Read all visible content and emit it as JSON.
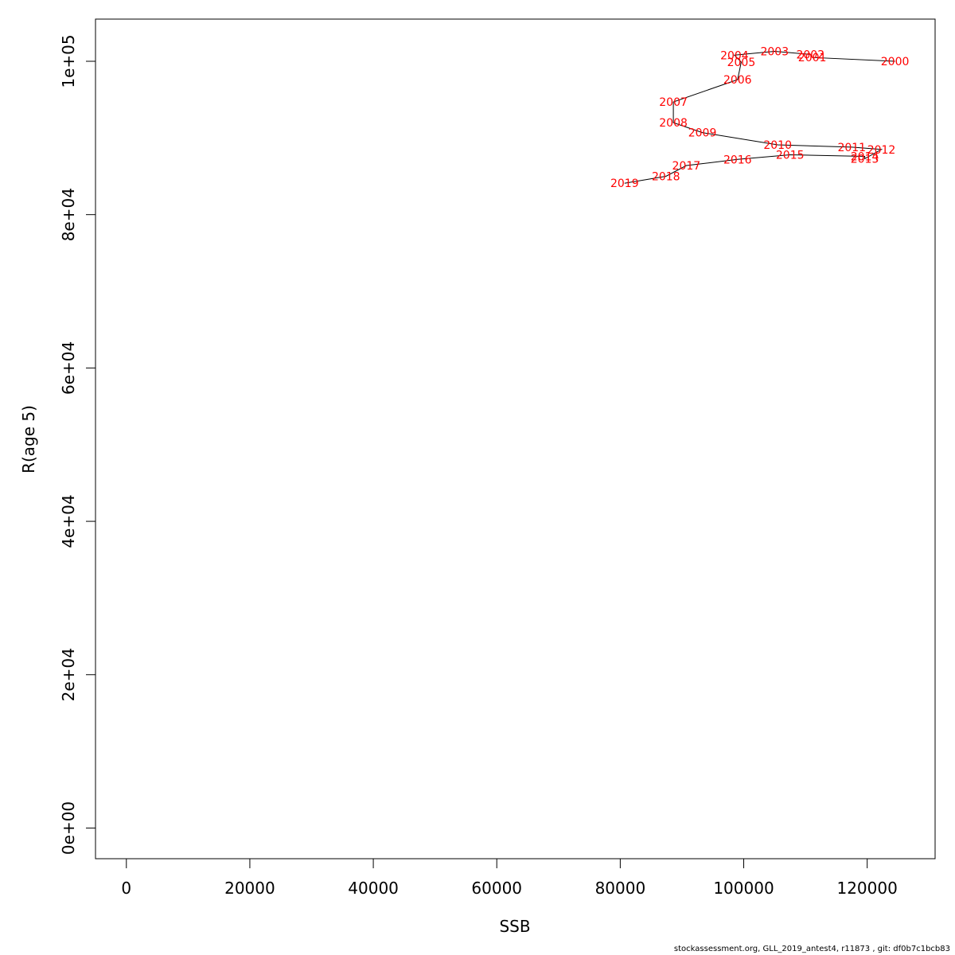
{
  "chart_data": {
    "type": "line",
    "xlabel": "SSB",
    "ylabel": "R(age 5)",
    "xlim": [
      -5000,
      131000
    ],
    "ylim": [
      -4000,
      105500
    ],
    "x_ticks": [
      0,
      20000,
      40000,
      60000,
      80000,
      100000,
      120000
    ],
    "x_tick_labels": [
      "0",
      "20000",
      "40000",
      "60000",
      "80000",
      "100000",
      "120000"
    ],
    "y_ticks": [
      0,
      20000,
      40000,
      60000,
      80000,
      100000
    ],
    "y_tick_labels": [
      "0e+00",
      "2e+04",
      "4e+04",
      "6e+04",
      "8e+04",
      "1e+05"
    ],
    "grid": false,
    "line_color": "#000000",
    "label_color": "#ff0000",
    "points": [
      {
        "label": "2000",
        "x": 124500,
        "y": 100000
      },
      {
        "label": "2001",
        "x": 111100,
        "y": 100500
      },
      {
        "label": "2002",
        "x": 110800,
        "y": 100900
      },
      {
        "label": "2003",
        "x": 105000,
        "y": 101300
      },
      {
        "label": "2004",
        "x": 98500,
        "y": 100800
      },
      {
        "label": "2005",
        "x": 99600,
        "y": 99900
      },
      {
        "label": "2006",
        "x": 99000,
        "y": 97600
      },
      {
        "label": "2007",
        "x": 88600,
        "y": 94700
      },
      {
        "label": "2008",
        "x": 88600,
        "y": 92000
      },
      {
        "label": "2009",
        "x": 93300,
        "y": 90700
      },
      {
        "label": "2010",
        "x": 105500,
        "y": 89100
      },
      {
        "label": "2011",
        "x": 117500,
        "y": 88800
      },
      {
        "label": "2012",
        "x": 122300,
        "y": 88500
      },
      {
        "label": "2013",
        "x": 119600,
        "y": 87300
      },
      {
        "label": "2014",
        "x": 119600,
        "y": 87600
      },
      {
        "label": "2015",
        "x": 107500,
        "y": 87800
      },
      {
        "label": "2016",
        "x": 99000,
        "y": 87200
      },
      {
        "label": "2017",
        "x": 90700,
        "y": 86400
      },
      {
        "label": "2018",
        "x": 87400,
        "y": 85000
      },
      {
        "label": "2019",
        "x": 80700,
        "y": 84100
      }
    ]
  },
  "footer": "stockassessment.org, GLL_2019_antest4, r11873 , git: df0b7c1bcb83"
}
